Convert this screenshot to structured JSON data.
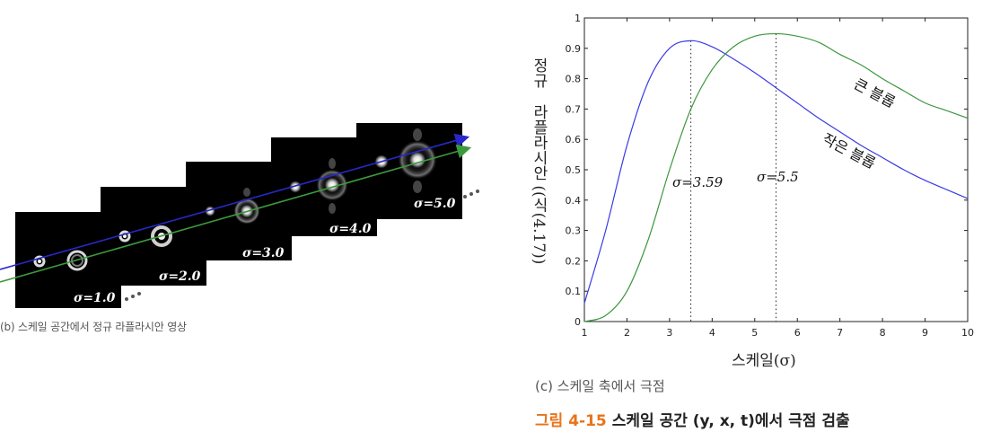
{
  "panel_b": {
    "frame_labels": [
      "σ=1.0",
      "σ=2.0",
      "σ=3.0",
      "σ=4.0",
      "σ=5.0"
    ],
    "caption": "(b) 스케일 공간에서 정규 라플라시안 영상",
    "arrow_colors": {
      "blue": "#2828c8",
      "green": "#3c9a3c"
    }
  },
  "panel_c": {
    "caption": "(c) 스케일 축에서 극점",
    "ylabel_line1": "정규",
    "ylabel_line2": "라플라시안 ((식(4.17))",
    "xlabel": "스케일(σ)",
    "annotations": {
      "small_blob": "작은 블롭",
      "large_blob": "큰 블롭",
      "sigma_small": "σ=3.59",
      "sigma_large": "σ=5.5"
    }
  },
  "figure_caption": {
    "number": "그림 4-15",
    "text": "스케일 공간 (y, x, t)에서 극점 검출"
  },
  "chart_data": {
    "type": "line",
    "xlim": [
      1,
      10
    ],
    "ylim": [
      0,
      1
    ],
    "xticks": [
      1,
      2,
      3,
      4,
      5,
      6,
      7,
      8,
      9,
      10
    ],
    "yticks": [
      0,
      0.1,
      0.2,
      0.3,
      0.4,
      0.5,
      0.6,
      0.7,
      0.8,
      0.9,
      1
    ],
    "xlabel": "스케일(σ)",
    "ylabel": "정규 라플라시안 ((식(4.17))",
    "grid": false,
    "series": [
      {
        "name": "작은 블롭",
        "color": "#3a3ae6",
        "x": [
          1,
          1.5,
          2,
          2.5,
          3,
          3.5,
          4,
          4.5,
          5,
          5.5,
          6,
          6.5,
          7,
          7.5,
          8,
          8.5,
          9,
          9.5,
          10
        ],
        "y": [
          0.06,
          0.3,
          0.58,
          0.79,
          0.9,
          0.925,
          0.905,
          0.865,
          0.82,
          0.77,
          0.72,
          0.67,
          0.625,
          0.58,
          0.54,
          0.5,
          0.465,
          0.435,
          0.405
        ]
      },
      {
        "name": "큰 블롭",
        "color": "#3d963d",
        "x": [
          1,
          1.5,
          2,
          2.5,
          3,
          3.5,
          4,
          4.5,
          5,
          5.5,
          6,
          6.5,
          7,
          7.5,
          8,
          8.5,
          9,
          9.5,
          10
        ],
        "y": [
          0.0,
          0.02,
          0.1,
          0.27,
          0.5,
          0.7,
          0.83,
          0.905,
          0.94,
          0.948,
          0.94,
          0.92,
          0.88,
          0.845,
          0.8,
          0.76,
          0.72,
          0.695,
          0.67
        ]
      }
    ],
    "markers": [
      {
        "x": 3.5,
        "label": "σ=3.59"
      },
      {
        "x": 5.5,
        "label": "σ=5.5"
      }
    ]
  }
}
